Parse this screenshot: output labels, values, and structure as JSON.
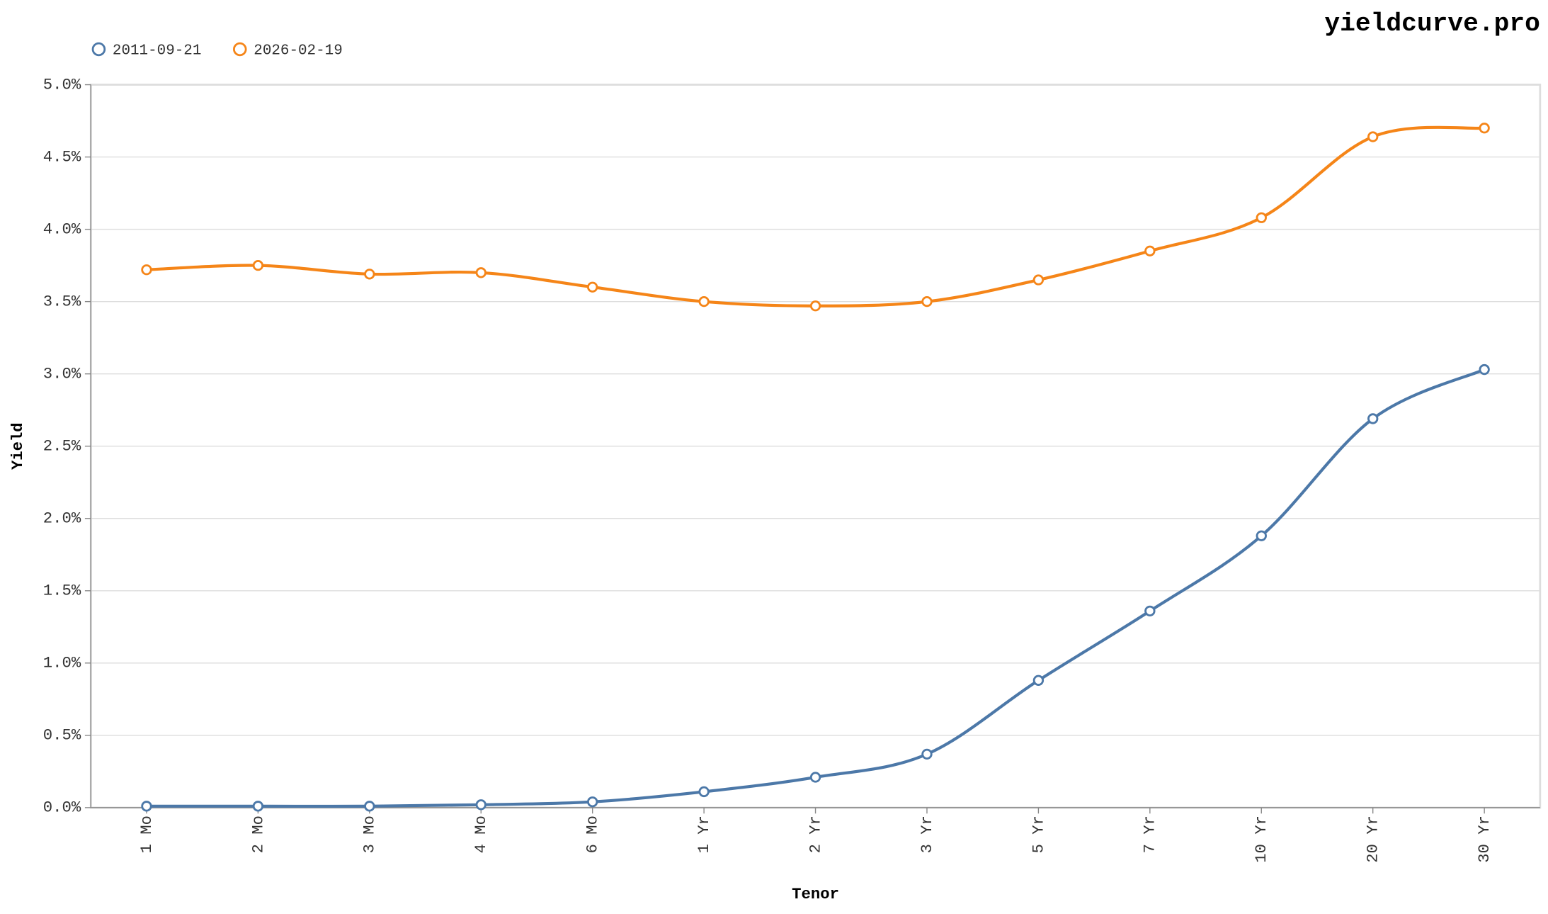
{
  "chart_data": {
    "type": "line",
    "watermark": "yieldcurve.pro",
    "x_label": "Tenor",
    "y_label": "Yield",
    "categories": [
      "1 Mo",
      "2 Mo",
      "3 Mo",
      "4 Mo",
      "6 Mo",
      "1 Yr",
      "2 Yr",
      "3 Yr",
      "5 Yr",
      "7 Yr",
      "10 Yr",
      "20 Yr",
      "30 Yr"
    ],
    "series": [
      {
        "name": "2011-09-21",
        "color": "#4c78a8",
        "values": [
          0.01,
          0.01,
          0.01,
          0.02,
          0.04,
          0.11,
          0.21,
          0.37,
          0.88,
          1.36,
          1.88,
          2.69,
          3.03
        ]
      },
      {
        "name": "2026-02-19",
        "color": "#f58518",
        "values": [
          3.72,
          3.75,
          3.69,
          3.7,
          3.6,
          3.5,
          3.47,
          3.5,
          3.65,
          3.85,
          4.08,
          4.64,
          4.7
        ]
      }
    ],
    "ylim": [
      0,
      5
    ],
    "yticks": [
      {
        "value": 0,
        "label": "0.0%"
      },
      {
        "value": 0.5,
        "label": "0.5%"
      },
      {
        "value": 1,
        "label": "1.0%"
      },
      {
        "value": 1.5,
        "label": "1.5%"
      },
      {
        "value": 2,
        "label": "2.0%"
      },
      {
        "value": 2.5,
        "label": "2.5%"
      },
      {
        "value": 3,
        "label": "3.0%"
      },
      {
        "value": 3.5,
        "label": "3.5%"
      },
      {
        "value": 4,
        "label": "4.0%"
      },
      {
        "value": 4.5,
        "label": "4.5%"
      },
      {
        "value": 5,
        "label": "5.0%"
      }
    ],
    "grid": true,
    "smooth": true,
    "legend": "top-left"
  }
}
